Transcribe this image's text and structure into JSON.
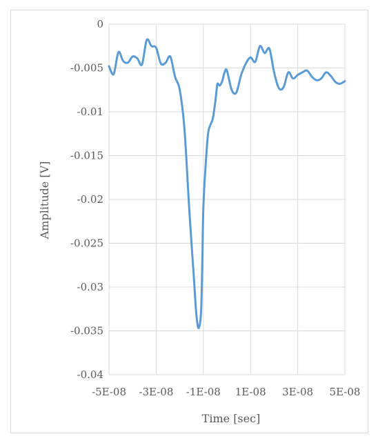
{
  "chart_data": {
    "type": "line",
    "xlabel": "Time [sec]",
    "ylabel": "Amplitude [V]",
    "xlim": [
      -5e-08,
      5e-08
    ],
    "ylim": [
      -0.04,
      0
    ],
    "grid": true,
    "legend": "none",
    "line_color": "#5b9bd5",
    "grid_color": "#d9d9d9",
    "x_tick_labels": [
      "-5E-08",
      "-3E-08",
      "-1E-08",
      "1E-08",
      "3E-08",
      "5E-08"
    ],
    "y_tick_labels": [
      "0",
      "-0.005",
      "-0.01",
      "-0.015",
      "-0.02",
      "-0.025",
      "-0.03",
      "-0.035",
      "-0.04"
    ],
    "series": [
      {
        "x": [
          -5e-08,
          -4.8e-08,
          -4.6e-08,
          -4.4e-08,
          -4.2e-08,
          -4e-08,
          -3.8e-08,
          -3.6e-08,
          -3.4e-08,
          -3.2e-08,
          -3e-08,
          -2.8e-08,
          -2.6e-08,
          -2.4e-08,
          -2.2e-08,
          -2e-08,
          -1.8e-08,
          -1.6e-08,
          -1.4e-08,
          -1.3e-08,
          -1.2e-08,
          -1.1e-08,
          -1.05e-08,
          -1e-08,
          -9e-09,
          -8e-09,
          -7e-09,
          -6e-09,
          -5e-09,
          -4.5e-09,
          -4e-09,
          -3e-09,
          -2e-09,
          -1e-09,
          0,
          2e-09,
          4e-09,
          6e-09,
          8e-09,
          1e-08,
          1.2e-08,
          1.4e-08,
          1.6e-08,
          1.8e-08,
          2e-08,
          2.2e-08,
          2.4e-08,
          2.6e-08,
          2.8e-08,
          3e-08,
          3.2e-08,
          3.4e-08,
          3.6e-08,
          3.8e-08,
          4e-08,
          4.2e-08,
          4.4e-08,
          4.6e-08,
          4.8e-08,
          5e-08
        ],
        "y": [
          -0.0048,
          -0.0057,
          -0.0032,
          -0.0042,
          -0.0044,
          -0.0037,
          -0.0039,
          -0.0046,
          -0.0018,
          -0.0025,
          -0.0027,
          -0.0045,
          -0.0044,
          -0.0037,
          -0.006,
          -0.0075,
          -0.012,
          -0.021,
          -0.029,
          -0.033,
          -0.0347,
          -0.033,
          -0.028,
          -0.021,
          -0.016,
          -0.0125,
          -0.0115,
          -0.0108,
          -0.009,
          -0.0078,
          -0.0068,
          -0.007,
          -0.0065,
          -0.0055,
          -0.0053,
          -0.0075,
          -0.0078,
          -0.0058,
          -0.0045,
          -0.0038,
          -0.0043,
          -0.0025,
          -0.0033,
          -0.0028,
          -0.0055,
          -0.0073,
          -0.0072,
          -0.0055,
          -0.0062,
          -0.0058,
          -0.0055,
          -0.0053,
          -0.006,
          -0.0064,
          -0.0062,
          -0.0055,
          -0.0059,
          -0.0066,
          -0.0068,
          -0.0065
        ]
      }
    ]
  }
}
